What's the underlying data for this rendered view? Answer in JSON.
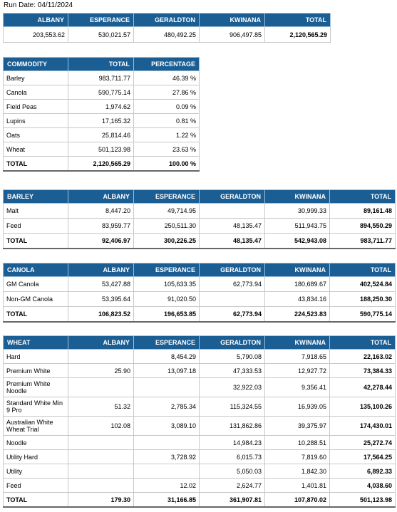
{
  "run_date": "Run Date: 04/11/2024",
  "summary": {
    "headers": [
      "ALBANY",
      "ESPERANCE",
      "GERALDTON",
      "KWINANA",
      "TOTAL"
    ],
    "values": [
      "203,553.62",
      "530,021.57",
      "480,492.25",
      "906,497.85",
      "2,120,565.29"
    ]
  },
  "commodity": {
    "headers": [
      "COMMODITY",
      "TOTAL",
      "PERCENTAGE"
    ],
    "rows": [
      [
        "Barley",
        "983,711.77",
        "46.39 %"
      ],
      [
        "Canola",
        "590,775.14",
        "27.86 %"
      ],
      [
        "Field Peas",
        "1,974.62",
        "0.09 %"
      ],
      [
        "Lupins",
        "17,165.32",
        "0.81 %"
      ],
      [
        "Oats",
        "25,814.46",
        "1.22 %"
      ],
      [
        "Wheat",
        "501,123.98",
        "23.63 %"
      ],
      [
        "TOTAL",
        "2,120,565.29",
        "100.00 %"
      ]
    ]
  },
  "barley": {
    "headers": [
      "BARLEY",
      "ALBANY",
      "ESPERANCE",
      "GERALDTON",
      "KWINANA",
      "TOTAL"
    ],
    "rows": [
      [
        "Malt",
        "8,447.20",
        "49,714.95",
        "",
        "30,999.33",
        "89,161.48"
      ],
      [
        "Feed",
        "83,959.77",
        "250,511.30",
        "48,135.47",
        "511,943.75",
        "894,550.29"
      ],
      [
        "TOTAL",
        "92,406.97",
        "300,226.25",
        "48,135.47",
        "542,943.08",
        "983,711.77"
      ]
    ]
  },
  "canola": {
    "headers": [
      "CANOLA",
      "ALBANY",
      "ESPERANCE",
      "GERALDTON",
      "KWINANA",
      "TOTAL"
    ],
    "rows": [
      [
        "GM Canola",
        "53,427.88",
        "105,633.35",
        "62,773.94",
        "180,689.67",
        "402,524.84"
      ],
      [
        "Non-GM Canola",
        "53,395.64",
        "91,020.50",
        "",
        "43,834.16",
        "188,250.30"
      ],
      [
        "TOTAL",
        "106,823.52",
        "196,653.85",
        "62,773.94",
        "224,523.83",
        "590,775.14"
      ]
    ]
  },
  "wheat": {
    "headers": [
      "WHEAT",
      "ALBANY",
      "ESPERANCE",
      "GERALDTON",
      "KWINANA",
      "TOTAL"
    ],
    "rows": [
      [
        "Hard",
        "",
        "8,454.29",
        "5,790.08",
        "7,918.65",
        "22,163.02"
      ],
      [
        "Premium White",
        "25.90",
        "13,097.18",
        "47,333.53",
        "12,927.72",
        "73,384.33"
      ],
      [
        "Premium White Noodle",
        "",
        "",
        "32,922.03",
        "9,356.41",
        "42,278.44"
      ],
      [
        "Standard White Min 9 Pro",
        "51.32",
        "2,785.34",
        "115,324.55",
        "16,939.05",
        "135,100.26"
      ],
      [
        "Australian White Wheat Trial",
        "102.08",
        "3,089.10",
        "131,862.86",
        "39,375.97",
        "174,430.01"
      ],
      [
        "Noodle",
        "",
        "",
        "14,984.23",
        "10,288.51",
        "25,272.74"
      ],
      [
        "Utility Hard",
        "",
        "3,728.92",
        "6,015.73",
        "7,819.60",
        "17,564.25"
      ],
      [
        "Utility",
        "",
        "",
        "5,050.03",
        "1,842.30",
        "6,892.33"
      ],
      [
        "Feed",
        "",
        "12.02",
        "2,624.77",
        "1,401.81",
        "4,038.60"
      ],
      [
        "TOTAL",
        "179.30",
        "31,166.85",
        "361,907.81",
        "107,870.02",
        "501,123.98"
      ]
    ]
  }
}
